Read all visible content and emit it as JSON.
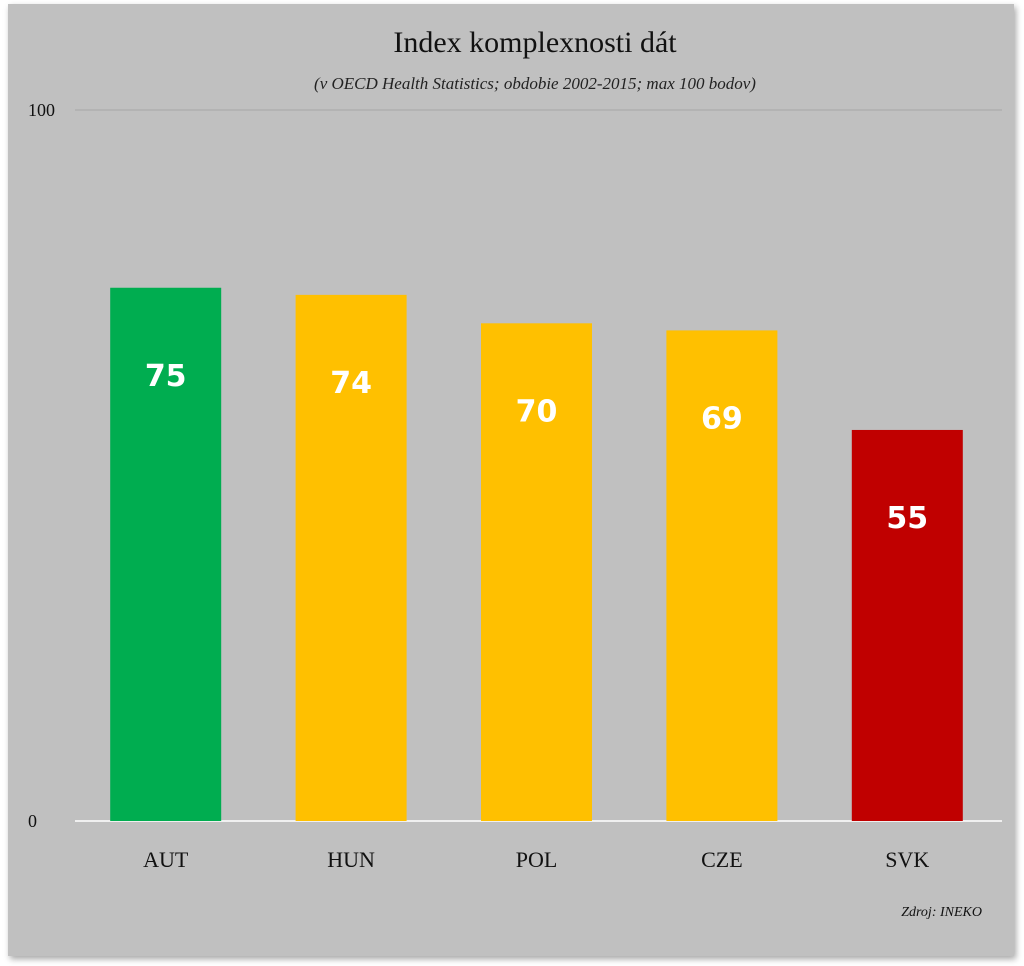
{
  "chart_data": {
    "type": "bar",
    "title": "Index komplexnosti dát",
    "subtitle": "(v OECD Health Statistics; obdobie 2002-2015; max 100 bodov)",
    "categories": [
      "AUT",
      "HUN",
      "POL",
      "CZE",
      "SVK"
    ],
    "values": [
      75,
      74,
      70,
      69,
      55
    ],
    "data_labels": [
      "75",
      "74",
      "70",
      "69",
      "55"
    ],
    "bar_colors": [
      "#00ad50",
      "#ffc000",
      "#ffc000",
      "#ffc000",
      "#c00000"
    ],
    "ylim": [
      0,
      100
    ],
    "yticks": [
      "0",
      "100"
    ],
    "source": "Zdroj: INEKO",
    "background_color": "#c0c0c0",
    "grid": true,
    "legend": "none"
  }
}
